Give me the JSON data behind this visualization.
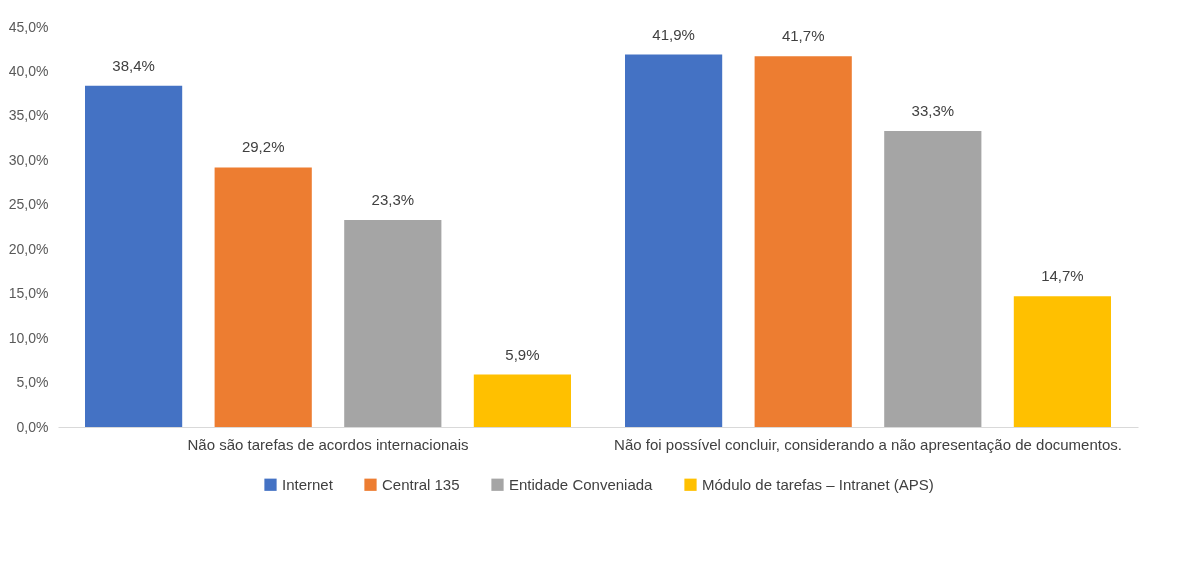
{
  "chart_data": {
    "type": "bar",
    "categories": [
      "Não são tarefas de acordos internacionais",
      "Não foi possível concluir, considerando a não apresentação de documentos."
    ],
    "series": [
      {
        "name": "Internet",
        "color": "#4472c4",
        "values": [
          38.4,
          41.9
        ],
        "value_labels": [
          "38,4%",
          "41,9%"
        ]
      },
      {
        "name": "Central 135",
        "color": "#ed7d31",
        "values": [
          29.2,
          41.7
        ],
        "value_labels": [
          "29,2%",
          "41,7%"
        ]
      },
      {
        "name": "Entidade Conveniada",
        "color": "#a5a5a5",
        "values": [
          23.3,
          33.3
        ],
        "value_labels": [
          "23,3%",
          "33,3%"
        ]
      },
      {
        "name": "Módulo de tarefas – Intranet (APS)",
        "color": "#ffc000",
        "values": [
          5.9,
          14.7
        ],
        "value_labels": [
          "5,9%",
          "14,7%"
        ]
      }
    ],
    "ylim": [
      0,
      45
    ],
    "yticks": [
      {
        "value": 0,
        "label": "0,0%"
      },
      {
        "value": 5,
        "label": "5,0%"
      },
      {
        "value": 10,
        "label": "10,0%"
      },
      {
        "value": 15,
        "label": "15,0%"
      },
      {
        "value": 20,
        "label": "20,0%"
      },
      {
        "value": 25,
        "label": "25,0%"
      },
      {
        "value": 30,
        "label": "30,0%"
      },
      {
        "value": 35,
        "label": "35,0%"
      },
      {
        "value": 40,
        "label": "40,0%"
      },
      {
        "value": 45,
        "label": "45,0%"
      }
    ],
    "grid": false,
    "legend": "bottom"
  }
}
